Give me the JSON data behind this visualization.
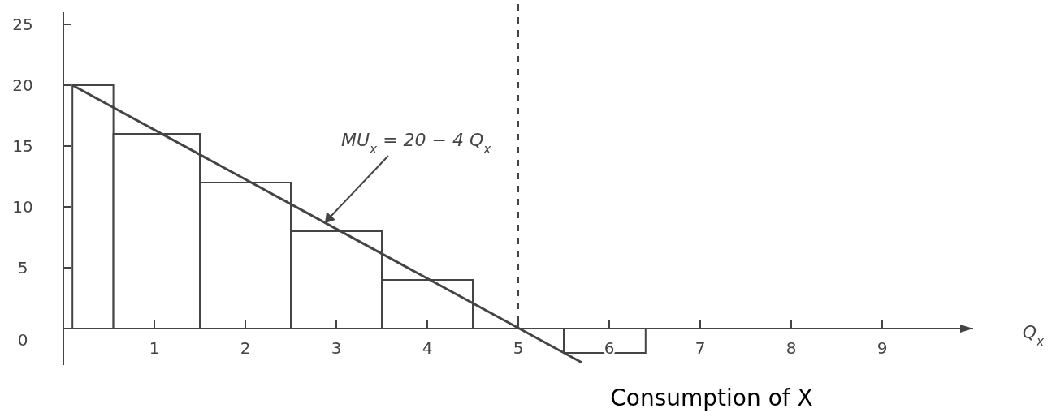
{
  "chart_data": {
    "type": "histogram",
    "xlabel": "Q$_{x}$",
    "xlim": [
      0,
      10
    ],
    "xticks": [
      1,
      2,
      3,
      4,
      5,
      6,
      7,
      8,
      9
    ],
    "ylim": [
      -3,
      26
    ],
    "yticks": [
      0,
      5,
      10,
      15,
      20,
      25
    ],
    "grid": false,
    "series": [
      {
        "color": "#ffffff",
        "bins": [
          0.1,
          0.55,
          1.5,
          2.5,
          3.5,
          4.5,
          5.5,
          6.4
        ],
        "values": [
          20,
          16,
          12,
          8,
          4,
          0,
          -2
        ]
      },
      {
        "type": "line",
        "color": "#444444",
        "x": [
          0.1,
          5.7
        ],
        "values": [
          20,
          -2.8
        ]
      }
    ],
    "ref_lines": [
      {
        "axis": "x",
        "value": 5,
        "line_style": "dashed",
        "color": "#444444"
      }
    ],
    "annotations": [
      "MU$_{x}$ = 20 − 4 Q$_{x}$",
      "Consumption of X"
    ]
  }
}
